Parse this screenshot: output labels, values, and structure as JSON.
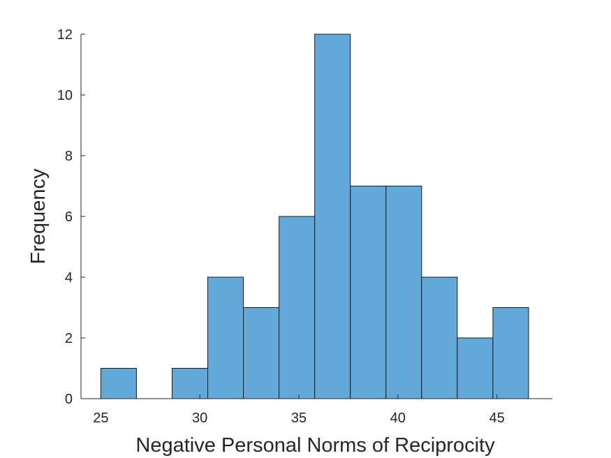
{
  "chart_data": {
    "type": "bar",
    "subtype": "histogram",
    "title": "",
    "xlabel": "Negative Personal Norms of Reciprocity",
    "ylabel": "Frequency",
    "xlim": [
      24,
      47.8
    ],
    "ylim": [
      0,
      12
    ],
    "xticks": [
      25,
      30,
      35,
      40,
      45
    ],
    "yticks": [
      0,
      2,
      4,
      6,
      8,
      10,
      12
    ],
    "grid": false,
    "legend": "none",
    "bar_color": "#62a8d8",
    "edge_color": "#1a1a1a",
    "bins": [
      {
        "start": 25.0,
        "end": 26.8,
        "count": 1
      },
      {
        "start": 26.8,
        "end": 28.6,
        "count": 0
      },
      {
        "start": 28.6,
        "end": 30.4,
        "count": 1
      },
      {
        "start": 30.4,
        "end": 32.2,
        "count": 4
      },
      {
        "start": 32.2,
        "end": 34.0,
        "count": 3
      },
      {
        "start": 34.0,
        "end": 35.8,
        "count": 6
      },
      {
        "start": 35.8,
        "end": 37.6,
        "count": 12
      },
      {
        "start": 37.6,
        "end": 39.4,
        "count": 7
      },
      {
        "start": 39.4,
        "end": 41.2,
        "count": 7
      },
      {
        "start": 41.2,
        "end": 43.0,
        "count": 4
      },
      {
        "start": 43.0,
        "end": 44.8,
        "count": 2
      },
      {
        "start": 44.8,
        "end": 46.6,
        "count": 3
      }
    ]
  }
}
